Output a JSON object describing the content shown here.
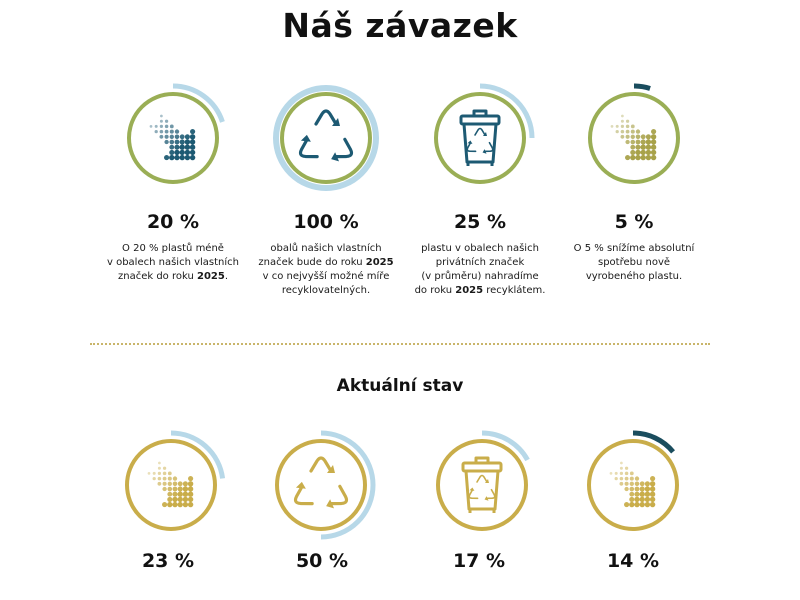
{
  "title": "Náš závazek",
  "commitments": [
    {
      "icon": "arrow-dots-icon",
      "progress": 0.2,
      "ring_color": "#9aae55",
      "progress_color": "#b7d8e8",
      "value": "20 %",
      "lines": [
        "O 20 % plastů méně",
        "v obalech našich vlastních",
        "značek do roku ",
        "2025",
        "."
      ]
    },
    {
      "icon": "recycle-icon",
      "progress": 1.0,
      "ring_color": "#9aae55",
      "progress_color": "#b7d8e8",
      "value": "100 %",
      "lines": [
        "obalů našich vlastních",
        "značek bude do roku ",
        "2025",
        "v co nejvyšší možné míře",
        "recyklovatelných."
      ]
    },
    {
      "icon": "recycle-bin-icon",
      "progress": 0.25,
      "ring_color": "#9aae55",
      "progress_color": "#b7d8e8",
      "value": "25 %",
      "lines": [
        "plastu v obalech našich",
        "privátních značek",
        "(v průměru) nahradíme",
        "do roku ",
        "2025",
        " recyklátem."
      ]
    },
    {
      "icon": "arrow-dots-icon",
      "progress": 0.05,
      "ring_color": "#9aae55",
      "progress_color": "#1a4d5e",
      "value": "5 %",
      "lines": [
        "O 5 % snížíme absolutní",
        "spotřebu nově",
        "vyrobeného plastu."
      ]
    }
  ],
  "subtitle": "Aktuální stav",
  "status": [
    {
      "icon": "arrow-dots-icon",
      "progress": 0.23,
      "ring_color": "#c9ad4a",
      "progress_color": "#b7d8e8",
      "value": "23 %"
    },
    {
      "icon": "recycle-icon",
      "progress": 0.5,
      "ring_color": "#c9ad4a",
      "progress_color": "#b7d8e8",
      "value": "50 %"
    },
    {
      "icon": "recycle-bin-icon",
      "progress": 0.17,
      "ring_color": "#c9ad4a",
      "progress_color": "#b7d8e8",
      "value": "17 %"
    },
    {
      "icon": "arrow-dots-icon",
      "progress": 0.14,
      "ring_color": "#c9ad4a",
      "progress_color": "#1a4d5e",
      "value": "14 %"
    }
  ]
}
